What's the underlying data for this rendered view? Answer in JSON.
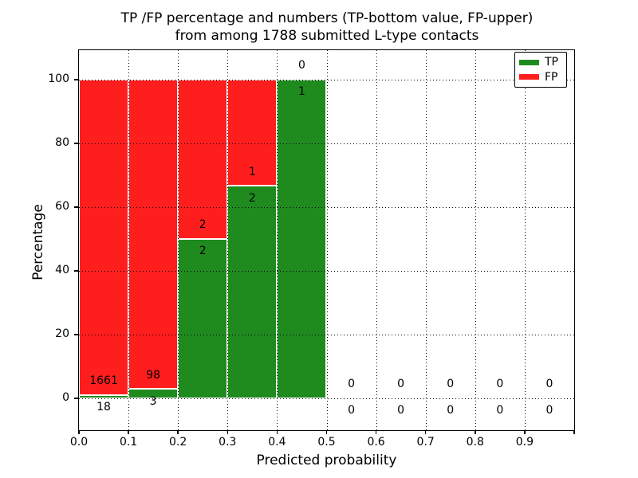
{
  "figure": {
    "title_line1": "TP /FP percentage and numbers (TP-bottom value, FP-upper)",
    "title_line2": "from among 1788 submitted L-type contacts"
  },
  "chart_data": {
    "type": "bar",
    "subtype": "stacked-percentage-histogram",
    "title": "TP /FP percentage and numbers (TP-bottom value, FP-upper)\nfrom among 1788 submitted L-type contacts",
    "xlabel": "Predicted probability",
    "ylabel": "Percentage",
    "total_submitted": 1788,
    "contact_type": "L-type",
    "grid": "dotted",
    "xlim": [
      0.0,
      1.0
    ],
    "ylim_display": [
      -10,
      109.2
    ],
    "xticks": [
      {
        "v": 0.0,
        "label": "0.0"
      },
      {
        "v": 0.1,
        "label": "0.1"
      },
      {
        "v": 0.2,
        "label": "0.2"
      },
      {
        "v": 0.3,
        "label": "0.3"
      },
      {
        "v": 0.4,
        "label": "0.4"
      },
      {
        "v": 0.5,
        "label": "0.5"
      },
      {
        "v": 0.6,
        "label": "0.6"
      },
      {
        "v": 0.7,
        "label": "0.7"
      },
      {
        "v": 0.8,
        "label": "0.8"
      },
      {
        "v": 0.9,
        "label": "0.9"
      },
      {
        "v": 1.0,
        "label": ""
      }
    ],
    "yticks": [
      {
        "v": 0,
        "label": "0"
      },
      {
        "v": 20,
        "label": "20"
      },
      {
        "v": 40,
        "label": "40"
      },
      {
        "v": 60,
        "label": "60"
      },
      {
        "v": 80,
        "label": "80"
      },
      {
        "v": 100,
        "label": "100"
      }
    ],
    "colors": {
      "tp": "#1f8b1f",
      "fp": "#ff1e1e"
    },
    "legend": {
      "position": "upper right",
      "items": [
        {
          "label": "TP",
          "color": "#1f8b1f"
        },
        {
          "label": "FP",
          "color": "#ff1e1e"
        }
      ]
    },
    "bins": [
      {
        "range": [
          0.0,
          0.1
        ],
        "tp": 18,
        "fp": 1661,
        "tp_pct": 1.07,
        "fp_pct": 98.93
      },
      {
        "range": [
          0.1,
          0.2
        ],
        "tp": 3,
        "fp": 98,
        "tp_pct": 2.97,
        "fp_pct": 97.03
      },
      {
        "range": [
          0.2,
          0.3
        ],
        "tp": 2,
        "fp": 2,
        "tp_pct": 50.0,
        "fp_pct": 50.0
      },
      {
        "range": [
          0.3,
          0.4
        ],
        "tp": 2,
        "fp": 1,
        "tp_pct": 66.67,
        "fp_pct": 33.33
      },
      {
        "range": [
          0.4,
          0.5
        ],
        "tp": 1,
        "fp": 0,
        "tp_pct": 100.0,
        "fp_pct": 0.0
      },
      {
        "range": [
          0.5,
          0.6
        ],
        "tp": 0,
        "fp": 0,
        "tp_pct": 0.0,
        "fp_pct": 0.0
      },
      {
        "range": [
          0.6,
          0.7
        ],
        "tp": 0,
        "fp": 0,
        "tp_pct": 0.0,
        "fp_pct": 0.0
      },
      {
        "range": [
          0.7,
          0.8
        ],
        "tp": 0,
        "fp": 0,
        "tp_pct": 0.0,
        "fp_pct": 0.0
      },
      {
        "range": [
          0.8,
          0.9
        ],
        "tp": 0,
        "fp": 0,
        "tp_pct": 0.0,
        "fp_pct": 0.0
      },
      {
        "range": [
          0.9,
          1.0
        ],
        "tp": 0,
        "fp": 0,
        "tp_pct": 0.0,
        "fp_pct": 0.0
      }
    ]
  }
}
